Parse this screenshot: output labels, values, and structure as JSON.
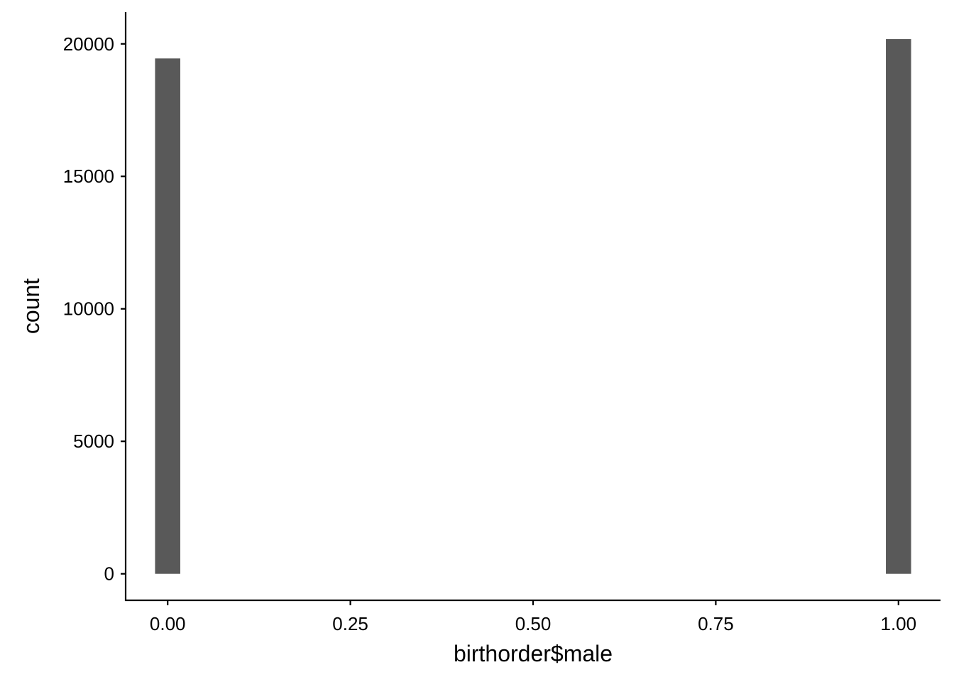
{
  "chart_data": {
    "type": "bar",
    "title": "",
    "xlabel": "birthorder$male",
    "ylabel": "count",
    "bars": [
      {
        "x": 0,
        "value": 19450
      },
      {
        "x": 1,
        "value": 20180
      }
    ],
    "bar_width": 0.0345,
    "xlim": [
      -0.0575,
      1.0575
    ],
    "ylim": [
      -1000,
      21200
    ],
    "xticks": [
      0,
      0.25,
      0.5,
      0.75,
      1
    ],
    "xtick_labels": [
      "0.00",
      "0.25",
      "0.50",
      "0.75",
      "1.00"
    ],
    "yticks": [
      0,
      5000,
      10000,
      15000,
      20000
    ],
    "ytick_labels": [
      "0",
      "5000",
      "10000",
      "15000",
      "20000"
    ],
    "grid": false,
    "legend": "none",
    "colors": {
      "bar": "#595959",
      "axis": "#000000",
      "background": "#ffffff"
    }
  }
}
